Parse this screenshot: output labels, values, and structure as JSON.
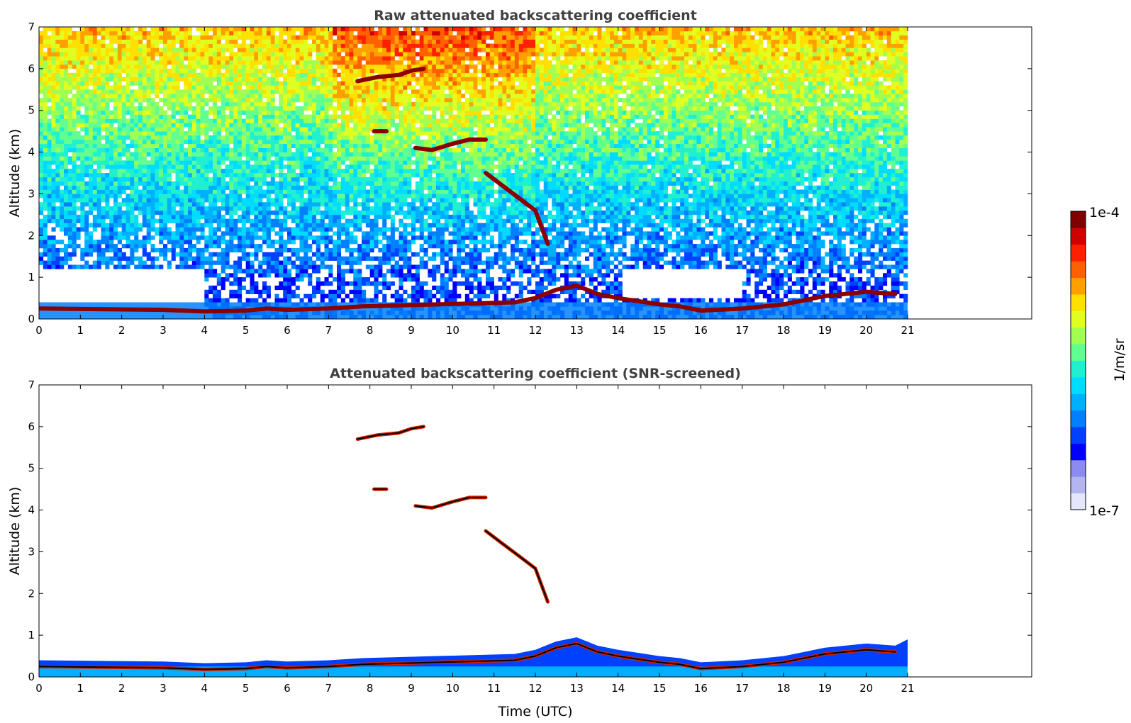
{
  "colors": {
    "jet": [
      "#e6e6fa",
      "#b4b4f0",
      "#8c8cf0",
      "#0000ff",
      "#0040ff",
      "#0080ff",
      "#00b0ff",
      "#00dcff",
      "#20f0d0",
      "#60ff90",
      "#a0ff50",
      "#e0ff20",
      "#ffe000",
      "#ffa000",
      "#ff6000",
      "#ff2000",
      "#d00000",
      "#800000"
    ]
  },
  "chart_data": [
    {
      "type": "heatmap",
      "title": "Raw attenuated backscattering coefficient",
      "xlabel": "",
      "ylabel": "Altitude (km)",
      "xlim": [
        0,
        24
      ],
      "ylim": [
        0,
        7
      ],
      "xticks": [
        "0",
        "1",
        "2",
        "3",
        "4",
        "5",
        "6",
        "7",
        "8",
        "9",
        "10",
        "11",
        "12",
        "13",
        "14",
        "15",
        "16",
        "17",
        "18",
        "19",
        "20",
        "21"
      ],
      "yticks": [
        "0",
        "1",
        "2",
        "3",
        "4",
        "5",
        "6",
        "7"
      ],
      "data_end_hour": 21,
      "layers": [
        {
          "name": "boundary-layer-top",
          "x": [
            0,
            3,
            4,
            5,
            5.5,
            6,
            7,
            7.8,
            11.5,
            12,
            12.5,
            13,
            13.5,
            14,
            15,
            15.5,
            16,
            17,
            18,
            19,
            20,
            20.7
          ],
          "y": [
            0.25,
            0.22,
            0.18,
            0.2,
            0.25,
            0.22,
            0.25,
            0.3,
            0.4,
            0.5,
            0.7,
            0.8,
            0.6,
            0.5,
            0.35,
            0.3,
            0.2,
            0.25,
            0.35,
            0.55,
            0.65,
            0.6
          ]
        },
        {
          "name": "cloud-6km",
          "x": [
            7.7,
            8.2,
            8.7,
            9.0,
            9.3
          ],
          "y": [
            5.7,
            5.8,
            5.85,
            5.95,
            6.0
          ]
        },
        {
          "name": "cloud-4.5km",
          "x": [
            8.1,
            8.4
          ],
          "y": [
            4.5,
            4.5
          ]
        },
        {
          "name": "cloud-4.2km",
          "x": [
            9.1,
            9.5,
            10.0,
            10.4,
            10.8
          ],
          "y": [
            4.1,
            4.05,
            4.2,
            4.3,
            4.3
          ]
        },
        {
          "name": "cloud-descending",
          "x": [
            10.8,
            11.2,
            11.6,
            12.0,
            12.3
          ],
          "y": [
            3.5,
            3.2,
            2.9,
            2.6,
            1.8
          ]
        }
      ]
    },
    {
      "type": "heatmap",
      "title": "Attenuated backscattering coefficient (SNR-screened)",
      "xlabel": "Time (UTC)",
      "ylabel": "Altitude (km)",
      "xlim": [
        0,
        24
      ],
      "ylim": [
        0,
        7
      ],
      "xticks": [
        "0",
        "1",
        "2",
        "3",
        "4",
        "5",
        "6",
        "7",
        "8",
        "9",
        "10",
        "11",
        "12",
        "13",
        "14",
        "15",
        "16",
        "17",
        "18",
        "19",
        "20",
        "21"
      ],
      "yticks": [
        "0",
        "1",
        "2",
        "3",
        "4",
        "5",
        "6",
        "7"
      ],
      "data_end_hour": 21
    }
  ],
  "colorbar": {
    "label": "1/m/sr",
    "max_label": "1e-4",
    "min_label": "1e-7",
    "range": [
      1e-07,
      0.0001
    ]
  }
}
